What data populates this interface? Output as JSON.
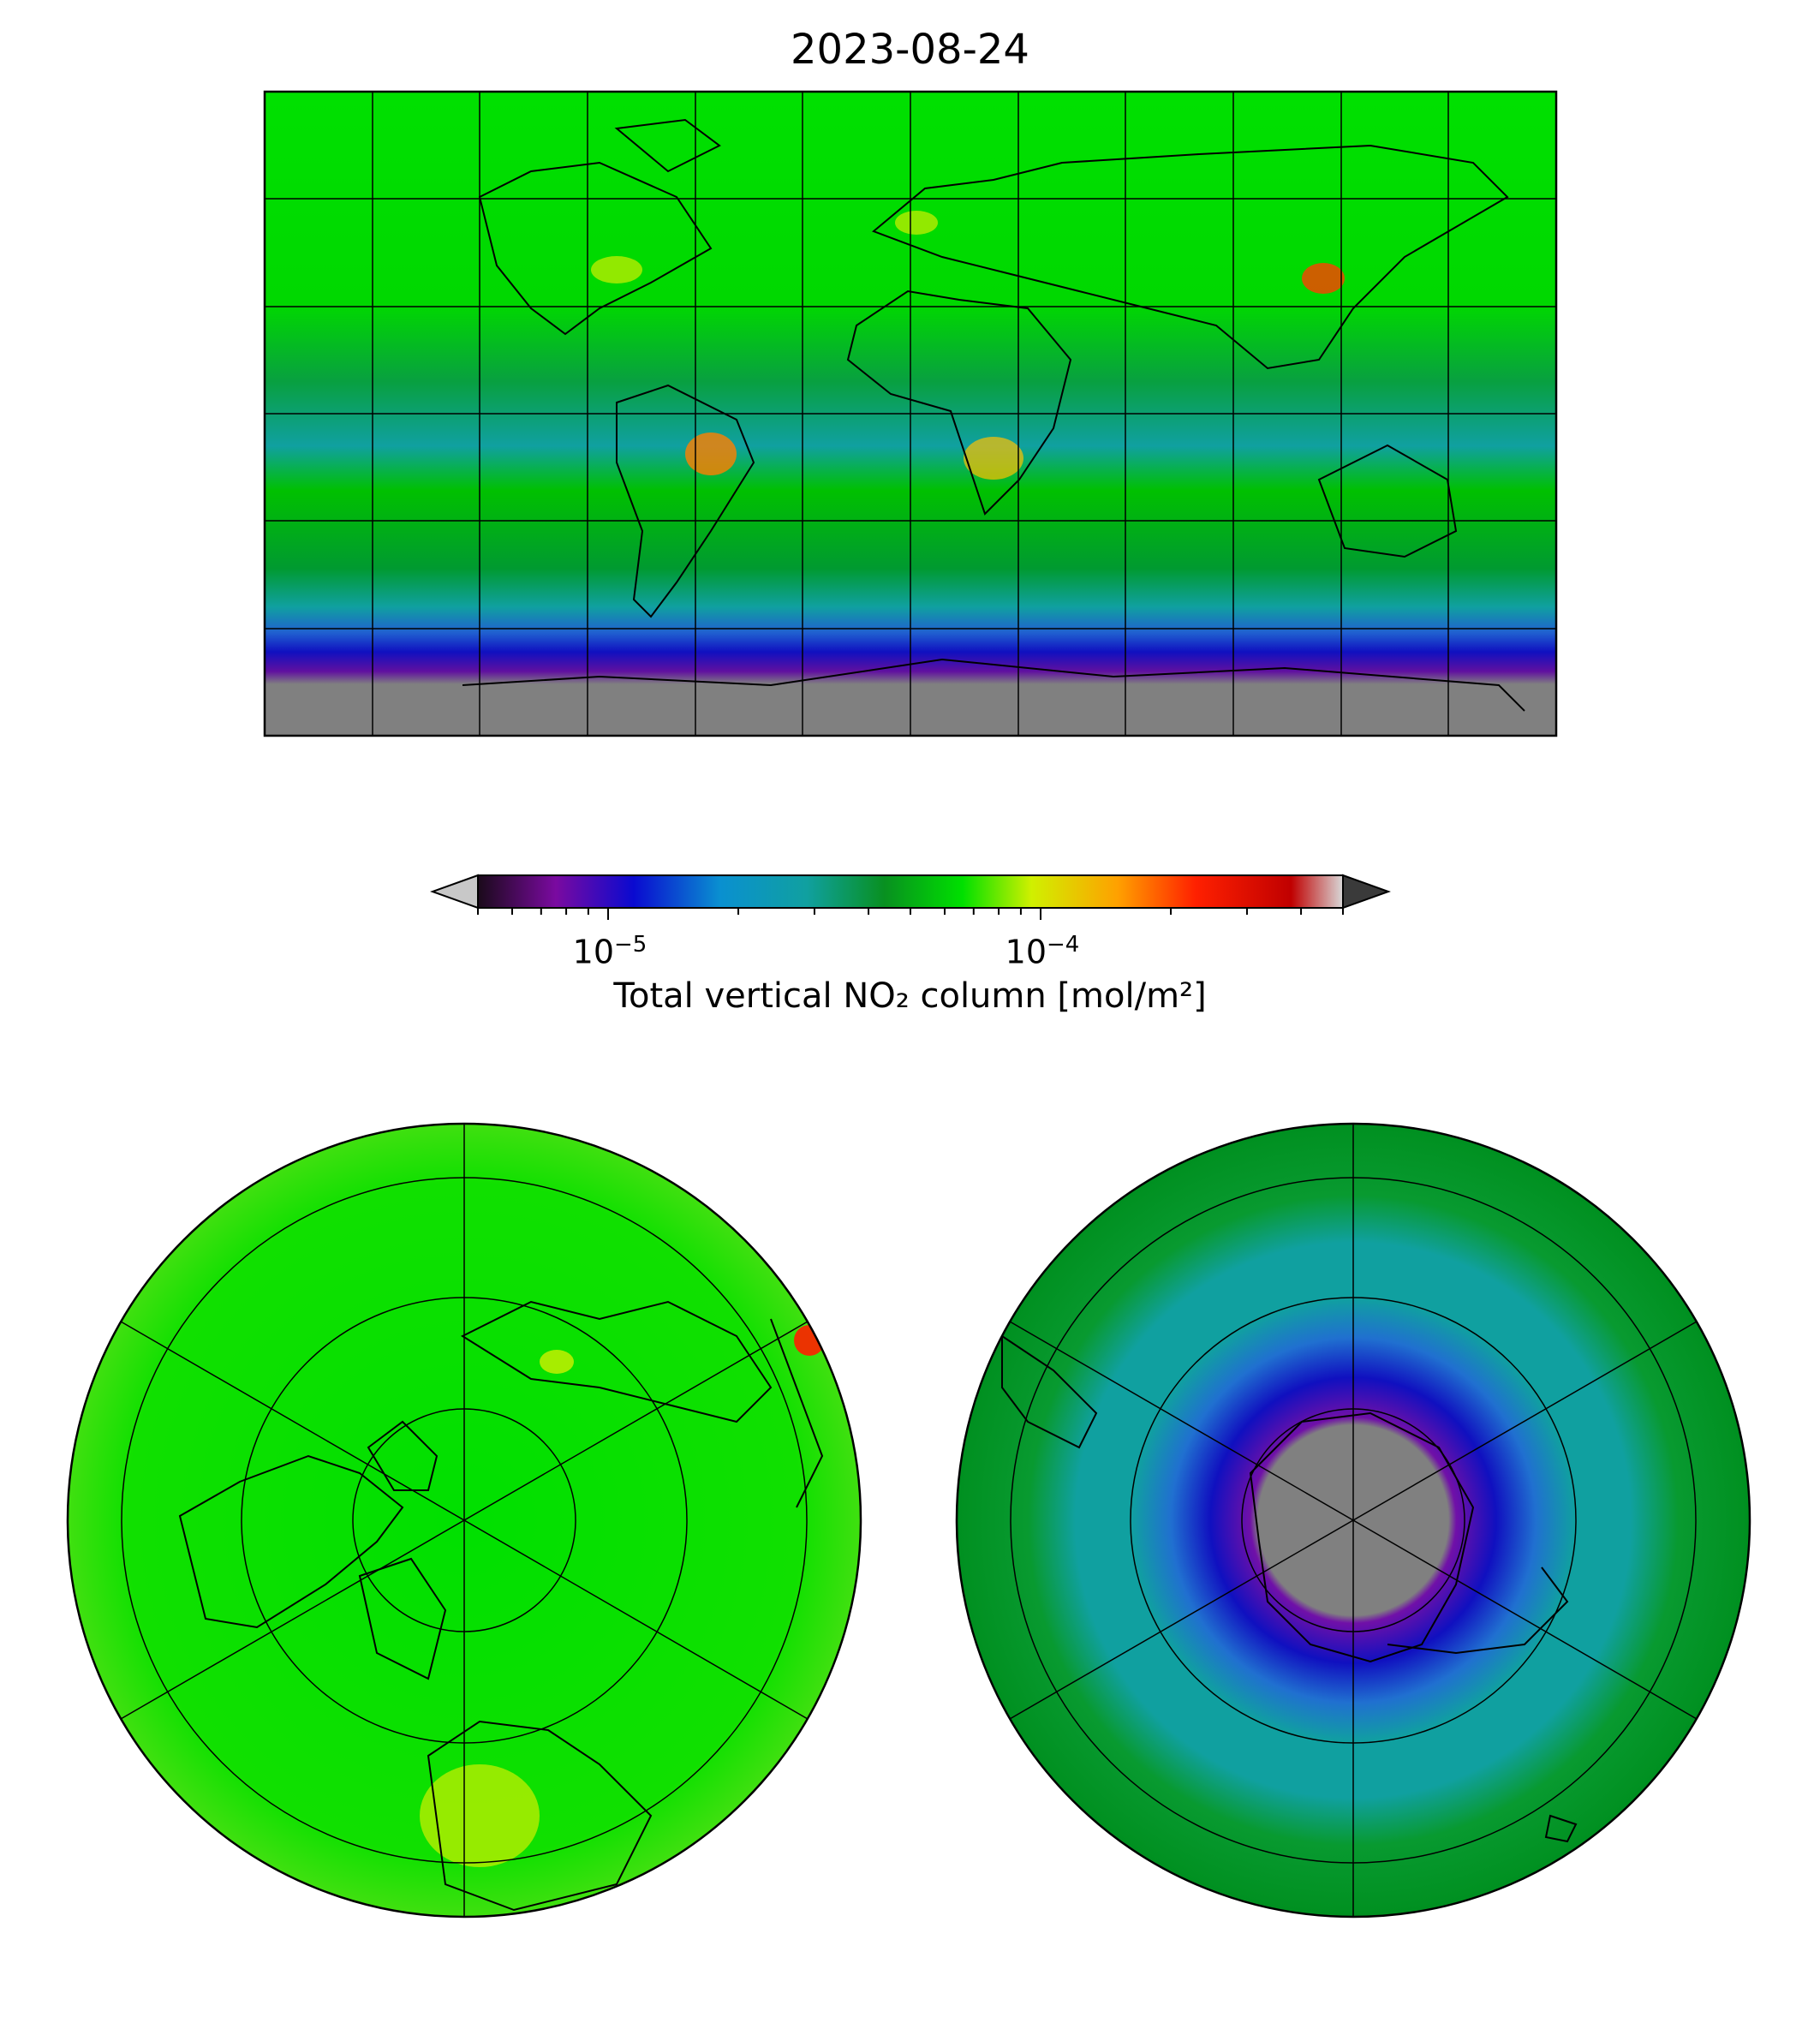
{
  "title": "2023-08-24",
  "colorbar": {
    "label": "Total vertical NO₂ column [mol/m²]",
    "scale": "log",
    "vmin": 5e-06,
    "vmax": 0.0005,
    "ticks": [
      {
        "value": 1e-05,
        "base": "10",
        "exponent": "−5"
      },
      {
        "value": 0.0001,
        "base": "10",
        "exponent": "−4"
      }
    ],
    "extend": "both",
    "colors": [
      "#1a0a1a",
      "#7a0aa0",
      "#0a0ad0",
      "#0a90d0",
      "#10a0a0",
      "#089020",
      "#00e000",
      "#d0f000",
      "#ffa000",
      "#ff2000",
      "#c00000",
      "#d8d8d8"
    ],
    "under_color": "#c8c8c8",
    "over_color": "#3a3a3a"
  },
  "panels": [
    {
      "name": "global-map",
      "projection": "PlateCarree",
      "gridlines": true,
      "coastlines": true,
      "nodata_color": "#808080"
    },
    {
      "name": "north-polar-map",
      "projection": "NorthPolarStereo",
      "gridlines": true,
      "coastlines": true
    },
    {
      "name": "south-polar-map",
      "projection": "SouthPolarStereo",
      "gridlines": true,
      "coastlines": true,
      "nodata_color": "#808080"
    }
  ]
}
